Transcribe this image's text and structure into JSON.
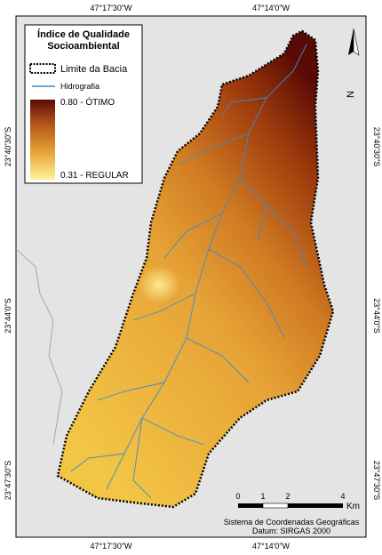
{
  "coordinates": {
    "top": [
      "47°17'30\"W",
      "47°14'0\"W"
    ],
    "bottom": [
      "47°17'30\"W",
      "47°14'0\"W"
    ],
    "left": [
      "23°40'30\"S",
      "23°44'0\"S",
      "23°47'30\"S"
    ],
    "right": [
      "23°40'30\"S",
      "23°44'0\"S",
      "23°47'30\"S"
    ]
  },
  "legend": {
    "title": [
      "Índice de Qualidade",
      "Socioambiental"
    ],
    "items": [
      "Limite da Bacia",
      "Hidrografia"
    ],
    "gradient": {
      "max": "0.80 - ÓTIMO",
      "min": "0.31 - REGULAR"
    }
  },
  "north": "N",
  "scale_bar": {
    "labels": [
      "0",
      "1",
      "2",
      "4"
    ],
    "unit": "Km"
  },
  "crs": [
    "Sistema de Coordenadas Geográficas",
    "Datum: SIRGAS 2000"
  ]
}
